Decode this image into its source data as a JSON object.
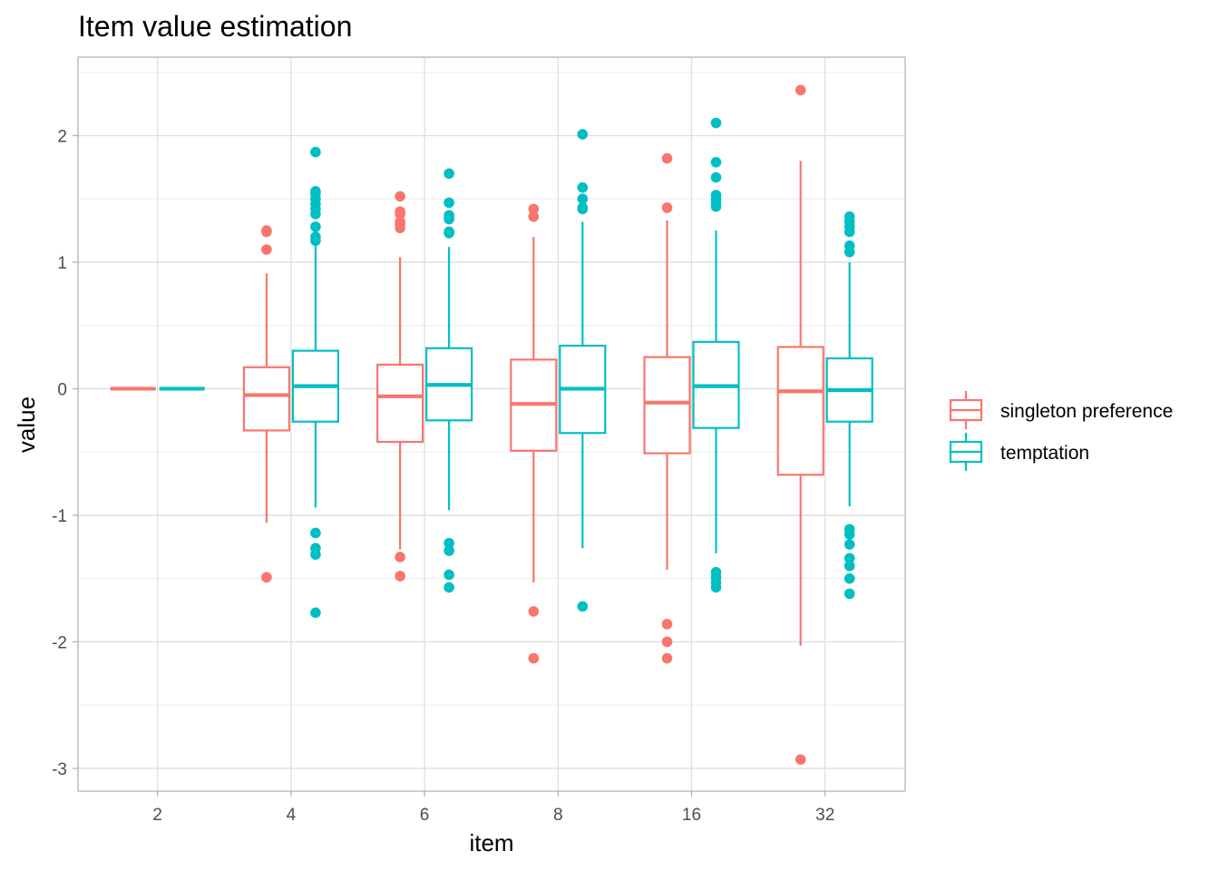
{
  "chart_data": {
    "type": "boxplot",
    "title": "Item value estimation",
    "xlabel": "item",
    "ylabel": "value",
    "categories": [
      "2",
      "4",
      "6",
      "8",
      "16",
      "32"
    ],
    "ylim": [
      -3.18,
      2.62
    ],
    "yticks": [
      -3,
      -2,
      -1,
      0,
      1,
      2
    ],
    "grid": true,
    "legend_position": "right",
    "series": [
      {
        "name": "singleton preference",
        "color": "#F8766D",
        "boxes": [
          {
            "min": 0,
            "q1": 0,
            "median": 0,
            "q3": 0,
            "max": 0,
            "outliers": []
          },
          {
            "min": -1.06,
            "q1": -0.33,
            "median": -0.05,
            "q3": 0.17,
            "max": 0.91,
            "outliers": [
              1.25,
              1.24,
              1.1,
              -1.49
            ]
          },
          {
            "min": -1.27,
            "q1": -0.42,
            "median": -0.06,
            "q3": 0.19,
            "max": 1.04,
            "outliers": [
              1.52,
              1.4,
              1.38,
              1.32,
              1.3,
              1.27,
              -1.33,
              -1.48
            ]
          },
          {
            "min": -1.53,
            "q1": -0.49,
            "median": -0.12,
            "q3": 0.23,
            "max": 1.2,
            "outliers": [
              1.42,
              1.36,
              -1.76,
              -2.13
            ]
          },
          {
            "min": -1.43,
            "q1": -0.51,
            "median": -0.11,
            "q3": 0.25,
            "max": 1.33,
            "outliers": [
              1.82,
              1.43,
              -1.86,
              -2.0,
              -2.13
            ]
          },
          {
            "min": -2.03,
            "q1": -0.68,
            "median": -0.02,
            "q3": 0.33,
            "max": 1.8,
            "outliers": [
              2.36,
              -2.93
            ]
          }
        ]
      },
      {
        "name": "temptation",
        "color": "#00BFC4",
        "boxes": [
          {
            "min": 0,
            "q1": 0,
            "median": 0,
            "q3": 0,
            "max": 0,
            "outliers": []
          },
          {
            "min": -0.94,
            "q1": -0.26,
            "median": 0.02,
            "q3": 0.3,
            "max": 1.14,
            "outliers": [
              1.87,
              1.56,
              1.54,
              1.5,
              1.46,
              1.42,
              1.38,
              1.28,
              1.2,
              1.17,
              -1.14,
              -1.26,
              -1.31,
              -1.77
            ]
          },
          {
            "min": -0.96,
            "q1": -0.25,
            "median": 0.03,
            "q3": 0.32,
            "max": 1.12,
            "outliers": [
              1.7,
              1.47,
              1.37,
              1.34,
              1.24,
              1.23,
              -1.22,
              -1.28,
              -1.47,
              -1.57
            ]
          },
          {
            "min": -1.26,
            "q1": -0.35,
            "median": 0.0,
            "q3": 0.34,
            "max": 1.32,
            "outliers": [
              2.01,
              1.59,
              1.5,
              1.43,
              1.42,
              -1.72
            ]
          },
          {
            "min": -1.3,
            "q1": -0.31,
            "median": 0.02,
            "q3": 0.37,
            "max": 1.25,
            "outliers": [
              2.1,
              1.79,
              1.67,
              1.53,
              1.5,
              1.47,
              1.44,
              -1.45,
              -1.49,
              -1.53,
              -1.57
            ]
          },
          {
            "min": -0.93,
            "q1": -0.26,
            "median": -0.01,
            "q3": 0.24,
            "max": 1.0,
            "outliers": [
              1.36,
              1.32,
              1.28,
              1.24,
              1.13,
              1.08,
              -1.11,
              -1.15,
              -1.23,
              -1.34,
              -1.4,
              -1.5,
              -1.62
            ]
          }
        ]
      }
    ]
  }
}
